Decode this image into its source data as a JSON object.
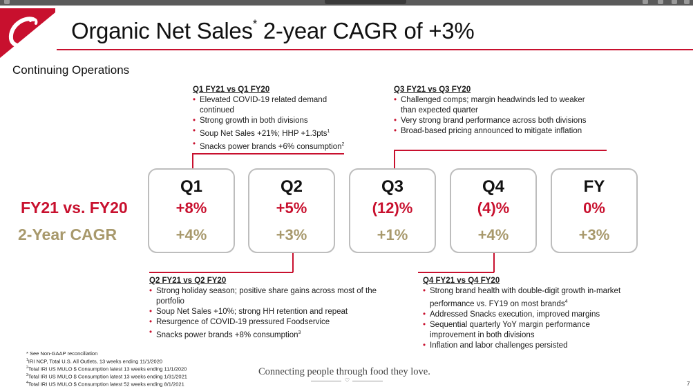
{
  "title": {
    "main_prefix": "Organic Net Sales",
    "superscript": "*",
    "main_suffix": " 2-year CAGR of +3%"
  },
  "subtitle": "Continuing Operations",
  "row_labels": {
    "fy": "FY21 vs. FY20",
    "cagr": "2-Year CAGR"
  },
  "quarters": [
    {
      "label": "Q1",
      "fy": "+8%",
      "cagr": "+4%"
    },
    {
      "label": "Q2",
      "fy": "+5%",
      "cagr": "+3%"
    },
    {
      "label": "Q3",
      "fy": "(12)%",
      "cagr": "+1%"
    },
    {
      "label": "Q4",
      "fy": "(4)%",
      "cagr": "+4%"
    },
    {
      "label": "FY",
      "fy": "0%",
      "cagr": "+3%"
    }
  ],
  "notes": {
    "q1": {
      "heading": "Q1 FY21 vs Q1 FY20",
      "bullets": [
        "Elevated COVID-19 related demand continued",
        "Strong growth in both divisions",
        "Soup Net Sales +21%; HHP +1.3pts",
        "Snacks power brands +6% consumption"
      ],
      "sup3": "1",
      "sup4": "2"
    },
    "q2": {
      "heading": "Q2 FY21 vs Q2 FY20",
      "bullets": [
        "Strong holiday season; positive share gains across most of the portfolio",
        "Soup Net Sales +10%; strong HH retention and repeat",
        "Resurgence of COVID-19 pressured Foodservice",
        "Snacks power brands +8% consumption"
      ],
      "sup4": "3"
    },
    "q3": {
      "heading": "Q3 FY21 vs Q3 FY20",
      "bullets": [
        "Challenged comps; margin headwinds led to weaker than expected quarter",
        "Very strong brand performance across both divisions",
        "Broad-based pricing announced to mitigate inflation"
      ]
    },
    "q4": {
      "heading": "Q4 FY21 vs Q4 FY20",
      "bullets": [
        "Strong brand health with double-digit growth in-market performance vs. FY19 on most brands",
        "Addressed Snacks execution, improved margins",
        "Sequential quarterly YoY margin performance improvement in both divisions",
        "Inflation and labor challenges persisted"
      ],
      "sup1": "4"
    }
  },
  "footnotes": [
    {
      "sup": "",
      "text": "* See Non-GAAP reconciliation"
    },
    {
      "sup": "1",
      "text": "IRI NCP, Total U.S. All Outlets, 13 weeks ending 11/1/2020"
    },
    {
      "sup": "2",
      "text": "Total IRI US MULO $ Consumption latest 13 weeks ending 11/1/2020"
    },
    {
      "sup": "3",
      "text": "Total IRI US MULO $ Consumption latest 13 weeks ending 1/31/2021"
    },
    {
      "sup": "4",
      "text": "Total IRI US MULO $ Consumption latest 52 weeks ending 8/1/2021"
    }
  ],
  "tagline": "Connecting people through food they love.",
  "page_number": "7",
  "colors": {
    "brand_red": "#c8102e",
    "gold": "#a8996c",
    "card_border": "#bdbdbd"
  }
}
